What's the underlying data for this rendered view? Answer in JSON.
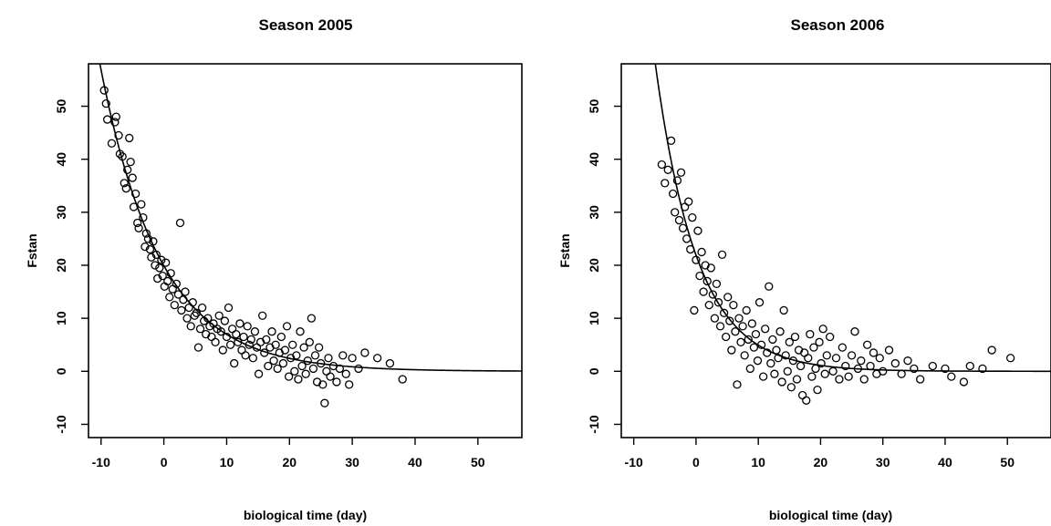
{
  "chart_data": [
    {
      "type": "scatter",
      "title": "Season 2005",
      "xlabel": "biological time (day)",
      "ylabel": "Fstan",
      "xlim": [
        -12,
        57
      ],
      "ylim": [
        -12.5,
        58
      ],
      "xticks": [
        -10,
        0,
        10,
        20,
        30,
        40,
        50
      ],
      "yticks": [
        -10,
        0,
        10,
        20,
        30,
        40,
        50
      ],
      "grid": false,
      "curve": {
        "a": 19.9,
        "b": 0.105
      },
      "points": [
        [
          -9.5,
          53.0
        ],
        [
          -9.2,
          50.5
        ],
        [
          -9.0,
          47.5
        ],
        [
          -8.3,
          43.0
        ],
        [
          -7.8,
          47.0
        ],
        [
          -7.6,
          48.0
        ],
        [
          -7.2,
          44.5
        ],
        [
          -7.0,
          41.0
        ],
        [
          -6.6,
          40.5
        ],
        [
          -6.3,
          35.5
        ],
        [
          -6.0,
          34.5
        ],
        [
          -5.8,
          38.0
        ],
        [
          -5.5,
          44.0
        ],
        [
          -5.3,
          39.5
        ],
        [
          -5.0,
          36.5
        ],
        [
          -4.8,
          31.0
        ],
        [
          -4.5,
          33.5
        ],
        [
          -4.2,
          28.0
        ],
        [
          -4.0,
          27.0
        ],
        [
          -3.6,
          31.5
        ],
        [
          -3.3,
          29.0
        ],
        [
          -3.0,
          23.5
        ],
        [
          -2.8,
          26.0
        ],
        [
          -2.5,
          25.0
        ],
        [
          -2.2,
          23.0
        ],
        [
          -2.0,
          21.5
        ],
        [
          -1.7,
          24.5
        ],
        [
          -1.4,
          20.0
        ],
        [
          -1.2,
          22.0
        ],
        [
          -1.0,
          17.5
        ],
        [
          -0.7,
          19.5
        ],
        [
          -0.4,
          21.0
        ],
        [
          -0.2,
          18.0
        ],
        [
          0.1,
          16.0
        ],
        [
          0.3,
          20.5
        ],
        [
          0.6,
          17.0
        ],
        [
          0.9,
          14.0
        ],
        [
          1.1,
          18.5
        ],
        [
          1.4,
          15.5
        ],
        [
          1.7,
          12.5
        ],
        [
          2.0,
          16.5
        ],
        [
          2.3,
          14.5
        ],
        [
          2.6,
          28.0
        ],
        [
          2.8,
          11.5
        ],
        [
          3.1,
          13.5
        ],
        [
          3.4,
          15.0
        ],
        [
          3.7,
          10.0
        ],
        [
          4.0,
          12.0
        ],
        [
          4.3,
          8.5
        ],
        [
          4.6,
          13.0
        ],
        [
          4.9,
          10.5
        ],
        [
          5.2,
          11.0
        ],
        [
          5.5,
          4.5
        ],
        [
          5.8,
          8.0
        ],
        [
          6.1,
          12.0
        ],
        [
          6.4,
          9.5
        ],
        [
          6.7,
          7.0
        ],
        [
          7.0,
          10.0
        ],
        [
          7.3,
          8.5
        ],
        [
          7.6,
          6.5
        ],
        [
          7.9,
          9.0
        ],
        [
          8.2,
          5.5
        ],
        [
          8.5,
          8.0
        ],
        [
          8.8,
          10.5
        ],
        [
          9.1,
          7.5
        ],
        [
          9.4,
          4.0
        ],
        [
          9.7,
          9.5
        ],
        [
          10.0,
          6.5
        ],
        [
          10.3,
          12.0
        ],
        [
          10.6,
          5.0
        ],
        [
          10.9,
          8.0
        ],
        [
          11.2,
          1.5
        ],
        [
          11.5,
          7.0
        ],
        [
          11.8,
          5.5
        ],
        [
          12.1,
          9.0
        ],
        [
          12.4,
          4.0
        ],
        [
          12.7,
          6.5
        ],
        [
          13.0,
          3.0
        ],
        [
          13.3,
          8.5
        ],
        [
          13.6,
          5.0
        ],
        [
          13.9,
          6.0
        ],
        [
          14.2,
          2.5
        ],
        [
          14.5,
          7.5
        ],
        [
          14.8,
          4.5
        ],
        [
          15.1,
          -0.5
        ],
        [
          15.4,
          5.5
        ],
        [
          15.7,
          10.5
        ],
        [
          16.0,
          3.5
        ],
        [
          16.3,
          6.0
        ],
        [
          16.6,
          1.0
        ],
        [
          16.9,
          4.5
        ],
        [
          17.2,
          7.5
        ],
        [
          17.5,
          2.0
        ],
        [
          17.8,
          5.0
        ],
        [
          18.1,
          0.5
        ],
        [
          18.4,
          3.5
        ],
        [
          18.7,
          6.5
        ],
        [
          19.0,
          1.5
        ],
        [
          19.3,
          4.0
        ],
        [
          19.6,
          8.5
        ],
        [
          19.9,
          -1.0
        ],
        [
          20.2,
          2.5
        ],
        [
          20.5,
          5.0
        ],
        [
          20.8,
          0.0
        ],
        [
          21.1,
          3.0
        ],
        [
          21.4,
          -1.5
        ],
        [
          21.7,
          7.5
        ],
        [
          22.0,
          1.0
        ],
        [
          22.3,
          4.5
        ],
        [
          22.6,
          -0.5
        ],
        [
          22.9,
          2.0
        ],
        [
          23.2,
          5.5
        ],
        [
          23.5,
          10.0
        ],
        [
          23.8,
          0.5
        ],
        [
          24.1,
          3.0
        ],
        [
          24.4,
          -2.0
        ],
        [
          24.7,
          4.5
        ],
        [
          25.0,
          1.5
        ],
        [
          25.3,
          -2.5
        ],
        [
          25.6,
          -6.0
        ],
        [
          25.9,
          0.0
        ],
        [
          26.2,
          2.5
        ],
        [
          26.5,
          -1.0
        ],
        [
          27.0,
          1.0
        ],
        [
          27.5,
          -2.0
        ],
        [
          28.0,
          0.5
        ],
        [
          28.5,
          3.0
        ],
        [
          29.0,
          -0.5
        ],
        [
          29.5,
          -2.5
        ],
        [
          30.0,
          2.5
        ],
        [
          31.0,
          0.5
        ],
        [
          32.0,
          3.5
        ],
        [
          34.0,
          2.5
        ],
        [
          36.0,
          1.5
        ],
        [
          38.0,
          -1.5
        ]
      ]
    },
    {
      "type": "scatter",
      "title": "Season 2006",
      "xlabel": "biological time (day)",
      "ylabel": "Fstan",
      "xlim": [
        -12,
        57
      ],
      "ylim": [
        -12.5,
        58
      ],
      "xticks": [
        -10,
        0,
        10,
        20,
        30,
        40,
        50
      ],
      "yticks": [
        -10,
        0,
        10,
        20,
        30,
        40,
        50
      ],
      "grid": false,
      "curve": {
        "a": 21.9,
        "b": 0.149
      },
      "points": [
        [
          -5.5,
          39.0
        ],
        [
          -5.0,
          35.5
        ],
        [
          -4.5,
          38.0
        ],
        [
          -4.0,
          43.5
        ],
        [
          -3.7,
          33.5
        ],
        [
          -3.4,
          30.0
        ],
        [
          -3.0,
          36.0
        ],
        [
          -2.7,
          28.5
        ],
        [
          -2.4,
          37.5
        ],
        [
          -2.1,
          27.0
        ],
        [
          -1.8,
          31.0
        ],
        [
          -1.5,
          25.0
        ],
        [
          -1.2,
          32.0
        ],
        [
          -0.9,
          23.0
        ],
        [
          -0.6,
          29.0
        ],
        [
          -0.3,
          11.5
        ],
        [
          0.0,
          21.0
        ],
        [
          0.3,
          26.5
        ],
        [
          0.6,
          18.0
        ],
        [
          0.9,
          22.5
        ],
        [
          1.2,
          15.0
        ],
        [
          1.5,
          20.0
        ],
        [
          1.8,
          17.0
        ],
        [
          2.1,
          12.5
        ],
        [
          2.4,
          19.5
        ],
        [
          2.7,
          14.5
        ],
        [
          3.0,
          10.0
        ],
        [
          3.3,
          16.5
        ],
        [
          3.6,
          13.0
        ],
        [
          3.9,
          8.5
        ],
        [
          4.2,
          22.0
        ],
        [
          4.5,
          11.0
        ],
        [
          4.8,
          6.5
        ],
        [
          5.1,
          14.0
        ],
        [
          5.4,
          9.5
        ],
        [
          5.7,
          4.0
        ],
        [
          6.0,
          12.5
        ],
        [
          6.3,
          7.5
        ],
        [
          6.6,
          -2.5
        ],
        [
          6.9,
          10.0
        ],
        [
          7.2,
          5.5
        ],
        [
          7.5,
          8.5
        ],
        [
          7.8,
          3.0
        ],
        [
          8.1,
          11.5
        ],
        [
          8.4,
          6.0
        ],
        [
          8.7,
          0.5
        ],
        [
          9.0,
          9.0
        ],
        [
          9.3,
          4.5
        ],
        [
          9.6,
          7.0
        ],
        [
          9.9,
          2.0
        ],
        [
          10.2,
          13.0
        ],
        [
          10.5,
          5.0
        ],
        [
          10.8,
          -1.0
        ],
        [
          11.1,
          8.0
        ],
        [
          11.4,
          3.5
        ],
        [
          11.7,
          16.0
        ],
        [
          12.0,
          1.5
        ],
        [
          12.3,
          6.0
        ],
        [
          12.6,
          -0.5
        ],
        [
          12.9,
          4.0
        ],
        [
          13.2,
          2.5
        ],
        [
          13.5,
          7.5
        ],
        [
          13.8,
          -2.0
        ],
        [
          14.1,
          11.5
        ],
        [
          14.4,
          3.0
        ],
        [
          14.7,
          0.0
        ],
        [
          15.0,
          5.5
        ],
        [
          15.3,
          -3.0
        ],
        [
          15.6,
          2.0
        ],
        [
          15.9,
          6.5
        ],
        [
          16.2,
          -1.5
        ],
        [
          16.5,
          4.0
        ],
        [
          16.8,
          1.0
        ],
        [
          17.1,
          -4.5
        ],
        [
          17.4,
          3.5
        ],
        [
          17.7,
          -5.5
        ],
        [
          18.0,
          2.5
        ],
        [
          18.3,
          7.0
        ],
        [
          18.6,
          -1.0
        ],
        [
          18.9,
          4.5
        ],
        [
          19.2,
          0.5
        ],
        [
          19.5,
          -3.5
        ],
        [
          19.8,
          5.5
        ],
        [
          20.1,
          1.5
        ],
        [
          20.4,
          8.0
        ],
        [
          20.7,
          -0.5
        ],
        [
          21.0,
          3.0
        ],
        [
          21.5,
          6.5
        ],
        [
          22.0,
          0.0
        ],
        [
          22.5,
          2.5
        ],
        [
          23.0,
          -1.5
        ],
        [
          23.5,
          4.5
        ],
        [
          24.0,
          1.0
        ],
        [
          24.5,
          -1.0
        ],
        [
          25.0,
          3.0
        ],
        [
          25.5,
          7.5
        ],
        [
          26.0,
          0.5
        ],
        [
          26.5,
          2.0
        ],
        [
          27.0,
          -1.5
        ],
        [
          27.5,
          5.0
        ],
        [
          28.0,
          1.0
        ],
        [
          28.5,
          3.5
        ],
        [
          29.0,
          -0.5
        ],
        [
          29.5,
          2.5
        ],
        [
          30.0,
          0.0
        ],
        [
          31.0,
          4.0
        ],
        [
          32.0,
          1.5
        ],
        [
          33.0,
          -0.5
        ],
        [
          34.0,
          2.0
        ],
        [
          35.0,
          0.5
        ],
        [
          36.0,
          -1.5
        ],
        [
          38.0,
          1.0
        ],
        [
          40.0,
          0.5
        ],
        [
          41.0,
          -1.0
        ],
        [
          43.0,
          -2.0
        ],
        [
          44.0,
          1.0
        ],
        [
          46.0,
          0.5
        ],
        [
          47.5,
          4.0
        ],
        [
          50.5,
          2.5
        ]
      ]
    }
  ]
}
